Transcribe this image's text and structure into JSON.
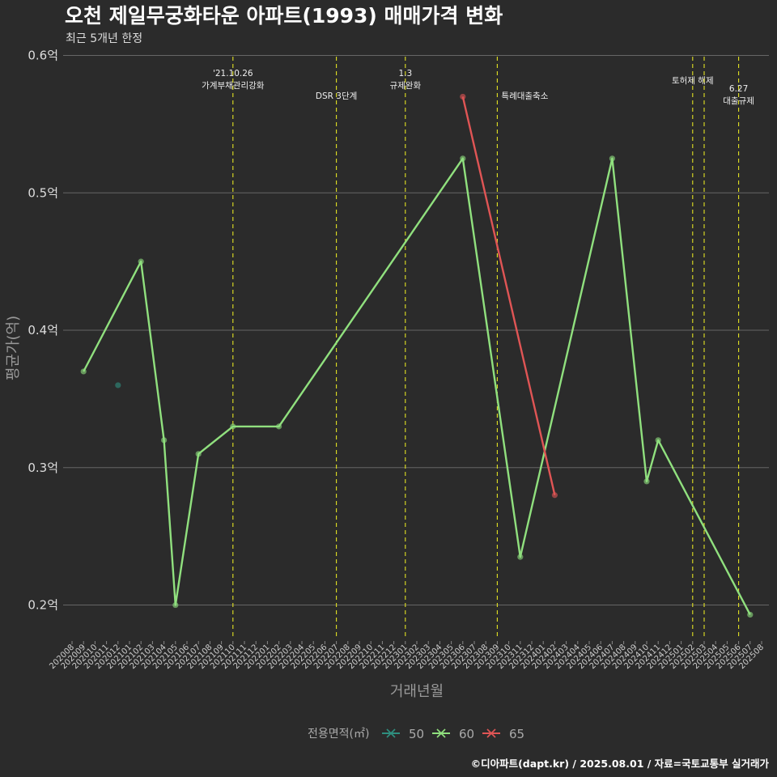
{
  "chart_data": {
    "type": "line",
    "title": "오천 제일무궁화타운 아파트(1993) 매매가격 변화",
    "subtitle": "최근 5개년 한정",
    "xlabel": "거래년월",
    "ylabel": "평균가(억)",
    "caption": "©디아파트(dapt.kr) / 2025.08.01 / 자료=국토교통부 실거래가",
    "ylim": [
      0.175,
      0.605
    ],
    "yticks": [
      {
        "value": 0.2,
        "label": "0.2억"
      },
      {
        "value": 0.3,
        "label": "0.3억"
      },
      {
        "value": 0.4,
        "label": "0.4억"
      },
      {
        "value": 0.5,
        "label": "0.5억"
      },
      {
        "value": 0.6,
        "label": "0.6억"
      }
    ],
    "x": [
      "202008",
      "202009",
      "202010",
      "202011",
      "202012",
      "202101",
      "202102",
      "202103",
      "202104",
      "202105",
      "202106",
      "202107",
      "202108",
      "202109",
      "202110",
      "202111",
      "202112",
      "202201",
      "202202",
      "202203",
      "202204",
      "202205",
      "202206",
      "202207",
      "202208",
      "202209",
      "202210",
      "202211",
      "202212",
      "202301",
      "202302",
      "202303",
      "202304",
      "202305",
      "202306",
      "202307",
      "202308",
      "202309",
      "202310",
      "202311",
      "202312",
      "202401",
      "202402",
      "202403",
      "202404",
      "202405",
      "202406",
      "202407",
      "202408",
      "202409",
      "202410",
      "202411",
      "202412",
      "202501",
      "202502",
      "202503",
      "202504",
      "202505",
      "202506",
      "202507",
      "202508"
    ],
    "series": [
      {
        "name": "50",
        "color": "#2f8f7f",
        "points": [
          [
            "202012",
            0.36
          ]
        ]
      },
      {
        "name": "60",
        "color": "#90e07e",
        "points": [
          [
            "202009",
            0.37
          ],
          [
            "202102",
            0.45
          ],
          [
            "202104",
            0.32
          ],
          [
            "202105",
            0.2
          ],
          [
            "202107",
            0.31
          ],
          [
            "202110",
            0.33
          ],
          [
            "202202",
            0.33
          ],
          [
            "202306",
            0.525
          ],
          [
            "202311",
            0.235
          ],
          [
            "202407",
            0.525
          ],
          [
            "202410",
            0.29
          ],
          [
            "202411",
            0.32
          ],
          [
            "202507",
            0.193
          ]
        ]
      },
      {
        "name": "65",
        "color": "#e05555",
        "points": [
          [
            "202306",
            0.57
          ],
          [
            "202402",
            0.28
          ]
        ]
      }
    ],
    "events": [
      {
        "date": "202110",
        "lines": [
          "'21.10.26",
          "가계부채관리강화"
        ],
        "row": "top"
      },
      {
        "date": "202207",
        "lines": [
          "DSR 3단계"
        ],
        "row": "low"
      },
      {
        "date": "202301",
        "lines": [
          "1.3",
          "규제완화"
        ],
        "row": "top"
      },
      {
        "date": "202309",
        "lines": [
          "특례대출축소"
        ],
        "row": "low"
      },
      {
        "date": "202502",
        "lines": [
          "토허제 해제"
        ],
        "row": "mid"
      },
      {
        "date": "202503",
        "lines": [],
        "row": "mid"
      },
      {
        "date": "202506",
        "lines": [
          "6.27",
          "대출규제"
        ],
        "row": "low2"
      }
    ],
    "legend": {
      "title": "전용면적(㎡)",
      "placement": "bottom"
    },
    "grid": true
  }
}
